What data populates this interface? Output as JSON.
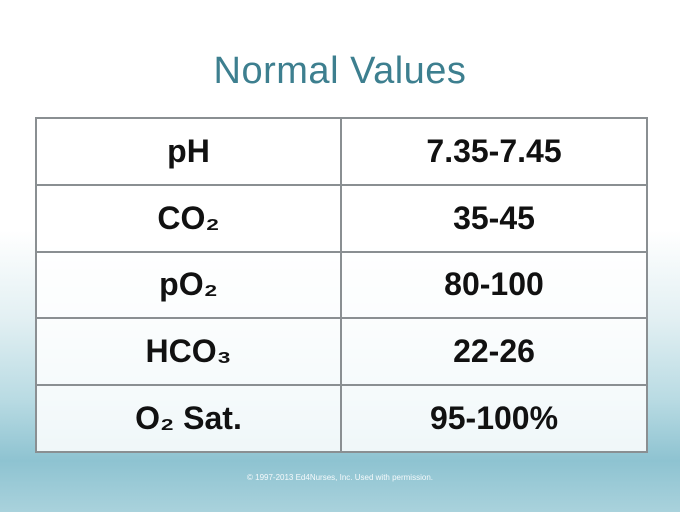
{
  "header": {
    "title": "Normal Values"
  },
  "table": {
    "rows": [
      [
        "pH",
        "7.35-7.45"
      ],
      [
        "CO₂",
        "35-45"
      ],
      [
        "pO₂",
        "80-100"
      ],
      [
        "HCO₃",
        "22-26"
      ],
      [
        "O₂ Sat.",
        "95-100%"
      ]
    ]
  },
  "footer": {
    "text": "© 1997-2013 Ed4Nurses, Inc. Used with permission."
  }
}
